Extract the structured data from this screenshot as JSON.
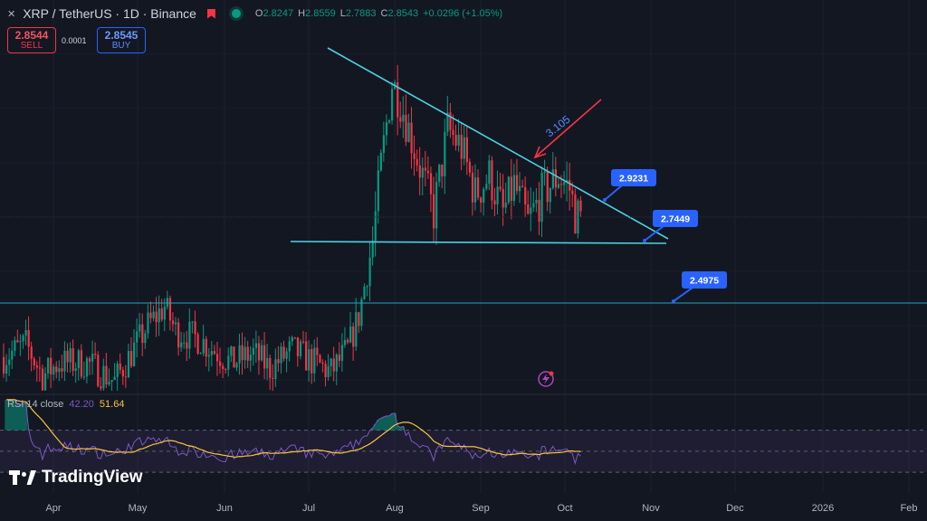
{
  "header": {
    "symbol": "XRP / TetherUS · 1D · Binance",
    "o_label": "O",
    "o_value": "2.8247",
    "h_label": "H",
    "h_value": "2.8559",
    "l_label": "L",
    "l_value": "2.7883",
    "c_label": "C",
    "c_value": "2.8543",
    "change": "+0.0296 (+1.05%)"
  },
  "trade": {
    "sell_price": "2.8544",
    "sell_label": "SELL",
    "spread": "0.0001",
    "buy_price": "2.8545",
    "buy_label": "BUY"
  },
  "rsi": {
    "label": "RSI 14 close",
    "value": "42.20",
    "ma_value": "51.64"
  },
  "brand": {
    "name": "TradingView"
  },
  "colors": {
    "up": "#089981",
    "down": "#f23645",
    "trendline": "#4dd0e1",
    "label_bg": "#2962ff",
    "rsi_line": "#7e57c2",
    "rsi_ma": "#f7c53c"
  },
  "chart_data": {
    "type": "candlestick",
    "title": "XRP / TetherUS · 1D · Binance",
    "x_ticks": [
      "Apr",
      "May",
      "Jun",
      "Jul",
      "Aug",
      "Sep",
      "Oct",
      "Nov",
      "Dec",
      "2026",
      "Feb"
    ],
    "y_range": [
      1.9,
      3.7
    ],
    "annotations": {
      "descending_trendline": {
        "start": [
          "2025-07-10",
          3.68
        ],
        "end": [
          "2025-11-08",
          2.75
        ]
      },
      "support_line": {
        "start": [
          "2025-07-07",
          2.75
        ],
        "end": [
          "2025-11-08",
          2.74
        ],
        "value": 2.7449
      },
      "horizontal_level": {
        "value": 2.4975
      },
      "price_labels": [
        "2.9231",
        "2.7449",
        "2.4975"
      ],
      "arrow_text": "3.105"
    },
    "rsi": {
      "period": 14,
      "value": 42.2,
      "ma": 51.64,
      "bands": [
        70,
        50,
        30
      ]
    }
  }
}
